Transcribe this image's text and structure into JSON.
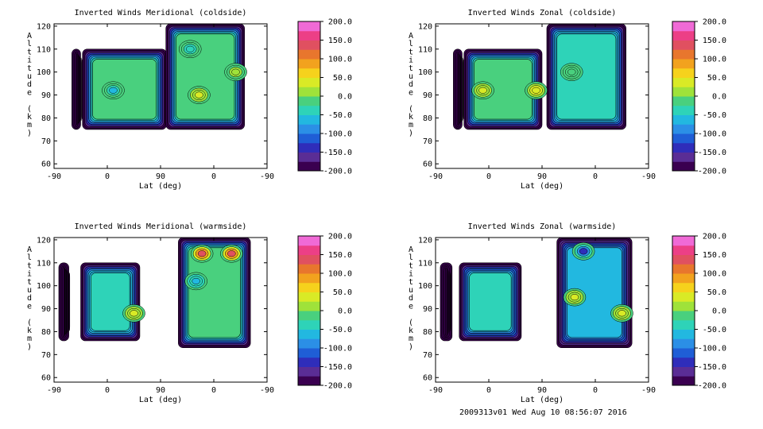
{
  "chart_data": [
    {
      "type": "heatmap",
      "title": "Inverted Winds Meridional (coldside)",
      "xlabel": "Lat (deg)",
      "ylabel": "Altitude (km)",
      "xticklabels": [
        "-90",
        "0",
        "90",
        "0",
        "-90"
      ],
      "yticks": [
        60,
        70,
        80,
        90,
        100,
        110,
        120
      ],
      "ylim": [
        58,
        121
      ],
      "colorbar": {
        "min": -200,
        "max": 200,
        "ticks": [
          "200.0",
          "150.0",
          "100.0",
          "50.0",
          "0.0",
          "-50.0",
          "-100.0",
          "-150.0",
          "-200.0"
        ]
      },
      "fields": [
        {
          "latFrom": -60,
          "latTo": -45,
          "altFrom": 75,
          "altTo": 110,
          "value": -185
        },
        {
          "latFrom": -42,
          "latTo": 100,
          "altFrom": 75,
          "altTo": 110,
          "value": -20
        },
        {
          "latFrom": 99,
          "latTo": 232,
          "altFrom": 75,
          "altTo": 121,
          "value": -25
        }
      ],
      "features": [
        {
          "lat": 10,
          "alt": 92,
          "value": -55
        },
        {
          "lat": 155,
          "alt": 90,
          "value": 30
        },
        {
          "lat": 217,
          "alt": 100,
          "value": 15
        },
        {
          "lat": 140,
          "alt": 110,
          "value": -45
        }
      ]
    },
    {
      "type": "heatmap",
      "title": "Inverted Winds Zonal (coldside)",
      "xlabel": "Lat (deg)",
      "ylabel": "Altitude (km)",
      "xticklabels": [
        "-90",
        "0",
        "90",
        "0",
        "-90"
      ],
      "yticks": [
        60,
        70,
        80,
        90,
        100,
        110,
        120
      ],
      "ylim": [
        58,
        121
      ],
      "colorbar": {
        "min": -200,
        "max": 200,
        "ticks": [
          "200.0",
          "150.0",
          "100.0",
          "50.0",
          "0.0",
          "-50.0",
          "-100.0",
          "-150.0",
          "-200.0"
        ]
      },
      "fields": [
        {
          "latFrom": -60,
          "latTo": -45,
          "altFrom": 75,
          "altTo": 110,
          "value": -185
        },
        {
          "latFrom": -42,
          "latTo": 90,
          "altFrom": 75,
          "altTo": 110,
          "value": -10
        },
        {
          "latFrom": 98,
          "latTo": 232,
          "altFrom": 75,
          "altTo": 121,
          "value": -30
        }
      ],
      "features": [
        {
          "lat": -10,
          "alt": 92,
          "value": 35
        },
        {
          "lat": 80,
          "alt": 92,
          "value": 45
        },
        {
          "lat": 140,
          "alt": 100,
          "value": -15
        }
      ]
    },
    {
      "type": "heatmap",
      "title": "Inverted Winds Meridional (warmside)",
      "xlabel": "Lat (deg)",
      "ylabel": "Altitude (km)",
      "xticklabels": [
        "-90",
        "0",
        "90",
        "0",
        "-90"
      ],
      "yticks": [
        60,
        70,
        80,
        90,
        100,
        110,
        120
      ],
      "ylim": [
        58,
        121
      ],
      "colorbar": {
        "min": -200,
        "max": 200,
        "ticks": [
          "200.0",
          "150.0",
          "100.0",
          "50.0",
          "0.0",
          "-50.0",
          "-100.0",
          "-150.0",
          "-200.0"
        ]
      },
      "fields": [
        {
          "latFrom": -82,
          "latTo": -65,
          "altFrom": 76,
          "altTo": 110,
          "value": -185
        },
        {
          "latFrom": -45,
          "latTo": 55,
          "altFrom": 76,
          "altTo": 110,
          "value": -30
        },
        {
          "latFrom": 120,
          "latTo": 242,
          "altFrom": 73,
          "altTo": 121,
          "value": -10
        }
      ],
      "features": [
        {
          "lat": 45,
          "alt": 88,
          "value": 35
        },
        {
          "lat": 160,
          "alt": 114,
          "value": 140
        },
        {
          "lat": 210,
          "alt": 114,
          "value": 130
        },
        {
          "lat": 150,
          "alt": 102,
          "value": -60
        }
      ]
    },
    {
      "type": "heatmap",
      "title": "Inverted Winds Zonal (warmside)",
      "xlabel": "Lat (deg)",
      "ylabel": "Altitude (km)",
      "xticklabels": [
        "-90",
        "0",
        "90",
        "0",
        "-90"
      ],
      "yticks": [
        60,
        70,
        80,
        90,
        100,
        110,
        120
      ],
      "ylim": [
        58,
        121
      ],
      "colorbar": {
        "min": -200,
        "max": 200,
        "ticks": [
          "200.0",
          "150.0",
          "100.0",
          "50.0",
          "0.0",
          "-50.0",
          "-100.0",
          "-150.0",
          "-200.0"
        ]
      },
      "fields": [
        {
          "latFrom": -82,
          "latTo": -62,
          "altFrom": 76,
          "altTo": 110,
          "value": -180
        },
        {
          "latFrom": -50,
          "latTo": 55,
          "altFrom": 76,
          "altTo": 110,
          "value": -45
        },
        {
          "latFrom": 115,
          "latTo": 242,
          "altFrom": 73,
          "altTo": 121,
          "value": -70
        }
      ],
      "features": [
        {
          "lat": 145,
          "alt": 95,
          "value": 30
        },
        {
          "lat": 225,
          "alt": 88,
          "value": 40
        },
        {
          "lat": 160,
          "alt": 115,
          "value": -130
        }
      ]
    }
  ],
  "footer": "2009313v01 Wed Aug 10 08:56:07 2016"
}
